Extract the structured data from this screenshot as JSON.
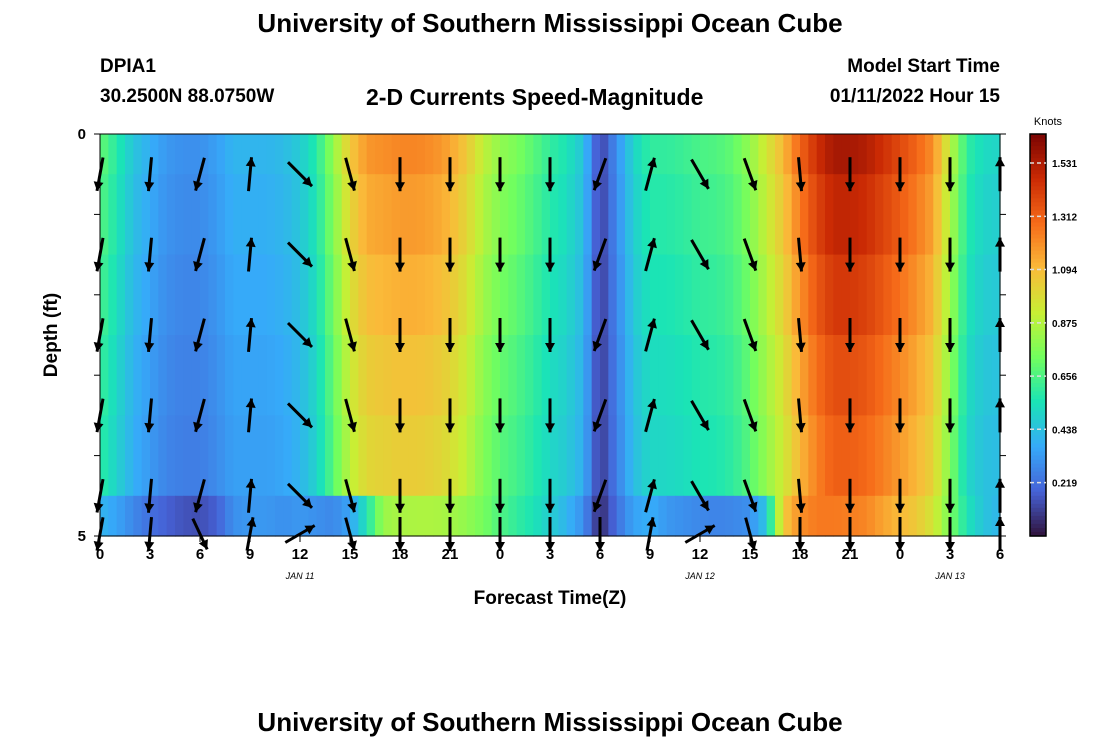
{
  "header": {
    "title": "University of Southern Mississippi Ocean Cube",
    "station_id": "DPIA1",
    "coords": "30.2500N  88.0750W",
    "plot_title": "2-D Currents Speed-Magnitude",
    "start_label": "Model Start Time",
    "start_value": "01/11/2022 Hour 15"
  },
  "footer": {
    "title": "University of Southern Mississippi Ocean Cube"
  },
  "chart_data": {
    "type": "heatmap",
    "title": "2-D Currents Speed-Magnitude",
    "xlabel": "Forecast Time(Z)",
    "ylabel": "Depth (ft)",
    "x_tick_labels": [
      "0",
      "3",
      "6",
      "9",
      "12",
      "15",
      "18",
      "21",
      "0",
      "3",
      "6",
      "9",
      "12",
      "15",
      "18",
      "21",
      "0",
      "3",
      "6"
    ],
    "date_labels": [
      {
        "label": "JAN 11",
        "at_hour": 12
      },
      {
        "label": "JAN 12",
        "at_hour": 36
      },
      {
        "label": "JAN 13",
        "at_hour": 51
      }
    ],
    "xlim_hours": [
      0,
      54
    ],
    "y_tick_labels": [
      {
        "label": "0",
        "value": 0
      },
      {
        "label": "",
        "value": 1
      },
      {
        "label": "",
        "value": 2
      },
      {
        "label": "",
        "value": 3
      },
      {
        "label": "",
        "value": 4
      },
      {
        "label": "5",
        "value": 5
      }
    ],
    "ylim": [
      0,
      5
    ],
    "colorbar": {
      "label": "Knots",
      "ticks": [
        "1.531",
        "1.312",
        "1.094",
        "0.875",
        "0.656",
        "0.438",
        "0.219"
      ],
      "tick_values": [
        1.531,
        1.312,
        1.094,
        0.875,
        0.656,
        0.438,
        0.219
      ],
      "range": [
        0,
        1.65
      ],
      "colormap": [
        "#30123b",
        "#4662d7",
        "#36aaf9",
        "#1ae4b6",
        "#72fe5e",
        "#c8ef34",
        "#faba39",
        "#f66b19",
        "#ca2a04",
        "#7a0403"
      ]
    },
    "speed_profile": {
      "hours": [
        0,
        1,
        2,
        3,
        4,
        5,
        6,
        7,
        8,
        9,
        10,
        11,
        12,
        13,
        14,
        15,
        16,
        17,
        18,
        19,
        20,
        21,
        22,
        23,
        24,
        25,
        26,
        27,
        28,
        29,
        30,
        31,
        32,
        33,
        34,
        35,
        36,
        37,
        38,
        39,
        40,
        41,
        42,
        43,
        44,
        45,
        46,
        47,
        48,
        49,
        50,
        51,
        52,
        53,
        54
      ],
      "surface_knots": [
        0.7,
        0.58,
        0.45,
        0.38,
        0.32,
        0.3,
        0.3,
        0.34,
        0.4,
        0.4,
        0.4,
        0.42,
        0.47,
        0.58,
        0.8,
        1.05,
        1.18,
        1.2,
        1.22,
        1.22,
        1.2,
        1.15,
        1.05,
        0.9,
        0.8,
        0.75,
        0.68,
        0.6,
        0.55,
        0.45,
        0.1,
        0.3,
        0.5,
        0.6,
        0.6,
        0.62,
        0.65,
        0.66,
        0.7,
        0.8,
        0.95,
        1.1,
        1.3,
        1.45,
        1.55,
        1.55,
        1.52,
        1.45,
        1.38,
        1.3,
        1.2,
        0.9,
        0.6,
        0.52,
        0.5
      ],
      "bottom_knots": [
        0.4,
        0.35,
        0.28,
        0.22,
        0.18,
        0.15,
        0.14,
        0.18,
        0.3,
        0.32,
        0.32,
        0.3,
        0.32,
        0.3,
        0.28,
        0.35,
        0.55,
        0.82,
        0.85,
        0.86,
        0.86,
        0.84,
        0.8,
        0.74,
        0.66,
        0.6,
        0.55,
        0.48,
        0.4,
        0.3,
        0.05,
        0.22,
        0.35,
        0.38,
        0.32,
        0.3,
        0.28,
        0.27,
        0.28,
        0.3,
        0.45,
        1.05,
        1.2,
        1.25,
        1.25,
        1.24,
        1.22,
        1.15,
        1.1,
        1.05,
        0.95,
        0.75,
        0.55,
        0.45,
        0.4
      ],
      "depth_factors": [
        1.0,
        0.96,
        0.92,
        0.88,
        0.85,
        0.82
      ]
    },
    "vector_hours": [
      0,
      3,
      6,
      9,
      12,
      15,
      18,
      21,
      24,
      27,
      30,
      33,
      36,
      39,
      42,
      45,
      48,
      51,
      54
    ],
    "vector_depths": [
      0.5,
      1.5,
      2.5,
      3.5,
      4.5,
      5.0
    ],
    "vector_direction_deg": [
      190,
      185,
      195,
      5,
      135,
      165,
      180,
      180,
      180,
      180,
      200,
      15,
      150,
      160,
      175,
      180,
      180,
      180,
      0
    ],
    "bottom_row_direction_deg": [
      190,
      185,
      155,
      10,
      60,
      165,
      180,
      180,
      180,
      180,
      180,
      10,
      60,
      165,
      180,
      180,
      180,
      180,
      0
    ]
  }
}
